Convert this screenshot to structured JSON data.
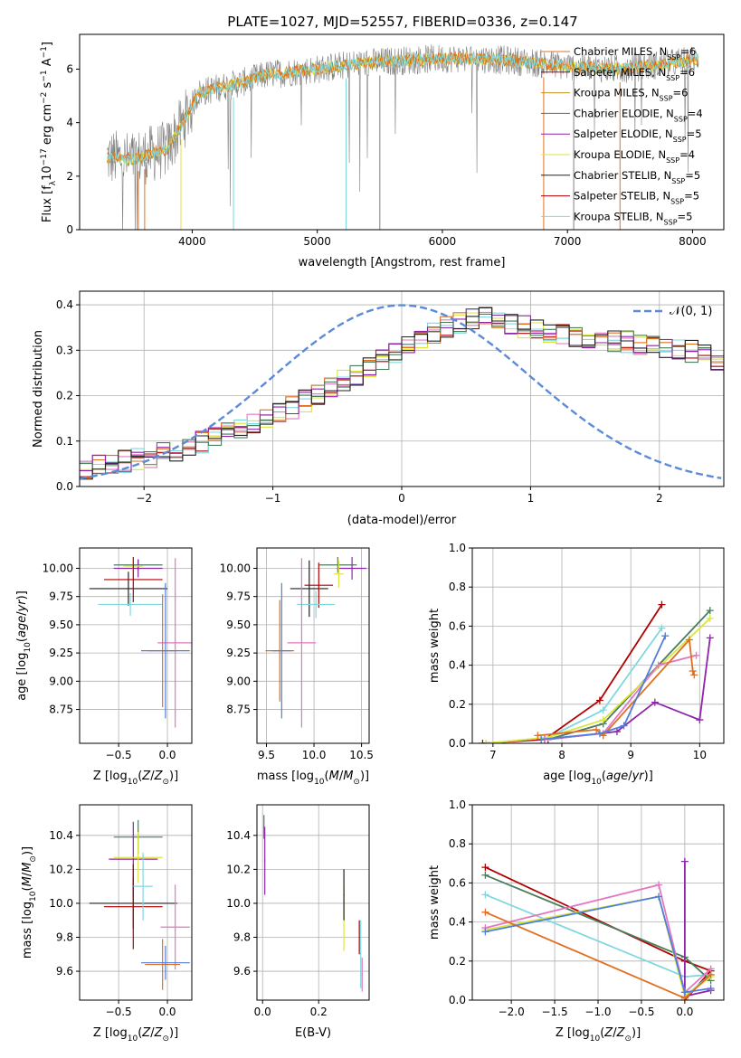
{
  "figure_title": "PLATE=1027, MJD=52557, FIBERID=0336, z=0.147",
  "model_colors": [
    "#4a7d5c",
    "#8e24aa",
    "#dbe53d",
    "#222222",
    "#b00000",
    "#7fd8e0",
    "#e377c2",
    "#e07020",
    "#4f7fdd"
  ],
  "chart_data": [
    {
      "id": "spectrum",
      "type": "line",
      "title": "PLATE=1027, MJD=52557, FIBERID=0336, z=0.147",
      "xlabel": "wavelength [Angstrom, rest frame]",
      "ylabel": "Flux [f_λ 10^−17 erg cm^−2 s^−1 A^−1]",
      "xlim": [
        3100,
        8250
      ],
      "ylim": [
        0,
        7.3
      ],
      "xticks": [
        4000,
        5000,
        6000,
        7000,
        8000
      ],
      "yticks": [
        0,
        2,
        4,
        6
      ],
      "grid": false,
      "legend_position": "top-right",
      "data_line_color": "#808080",
      "continuum_x": [
        3320,
        3500,
        3650,
        3800,
        3950,
        4050,
        4200,
        4400,
        4600,
        4800,
        5000,
        5300,
        5600,
        6000,
        6300,
        6600,
        7000,
        7400,
        7800,
        8050
      ],
      "continuum_y": [
        2.7,
        2.6,
        2.8,
        3.0,
        4.2,
        5.1,
        5.3,
        5.5,
        5.8,
        5.9,
        6.0,
        6.2,
        6.3,
        6.4,
        6.4,
        6.3,
        6.1,
        6.0,
        6.2,
        6.4
      ],
      "legend": [
        {
          "label": "Chabrier MILES, N",
          "sub": "SSP",
          "suffix": "=6"
        },
        {
          "label": "Salpeter MILES, N",
          "sub": "SSP",
          "suffix": "=6"
        },
        {
          "label": "Kroupa MILES, N",
          "sub": "SSP",
          "suffix": "=6"
        },
        {
          "label": "Chabrier ELODIE, N",
          "sub": "SSP",
          "suffix": "=4"
        },
        {
          "label": "Salpeter ELODIE, N",
          "sub": "SSP",
          "suffix": "=5"
        },
        {
          "label": "Kroupa ELODIE, N",
          "sub": "SSP",
          "suffix": "=4"
        },
        {
          "label": "Chabrier STELIB, N",
          "sub": "SSP",
          "suffix": "=5"
        },
        {
          "label": "Salpeter STELIB, N",
          "sub": "SSP",
          "suffix": "=5"
        },
        {
          "label": "Kroupa STELIB, N",
          "sub": "SSP",
          "suffix": "=5"
        }
      ],
      "legend_colors": [
        "#e07020",
        "#b00000",
        "#c89020",
        "#4a7d5c",
        "#8e24aa",
        "#dbe53d",
        "#222222",
        "#b00000",
        "#7fd8e0"
      ]
    },
    {
      "id": "residuals",
      "type": "histogram",
      "xlabel": "(data-model)/error",
      "ylabel": "Normed distribution",
      "xlim": [
        -2.5,
        2.5
      ],
      "ylim": [
        0,
        0.43
      ],
      "xticks": [
        -2,
        -1,
        0,
        1,
        2
      ],
      "yticks": [
        0.0,
        0.1,
        0.2,
        0.3,
        0.4
      ],
      "grid": true,
      "legend_position": "top-right",
      "legend_label": "𝒩(0, 1)",
      "gaussian_color": "#5b8bd8",
      "bin_edges_start": -2.5,
      "bin_width": 0.1,
      "base_histogram": [
        0.04,
        0.045,
        0.05,
        0.055,
        0.06,
        0.066,
        0.072,
        0.08,
        0.088,
        0.097,
        0.106,
        0.116,
        0.126,
        0.137,
        0.149,
        0.161,
        0.174,
        0.188,
        0.202,
        0.216,
        0.231,
        0.246,
        0.262,
        0.278,
        0.294,
        0.31,
        0.325,
        0.34,
        0.352,
        0.362,
        0.37,
        0.372,
        0.368,
        0.36,
        0.352,
        0.345,
        0.34,
        0.335,
        0.33,
        0.326,
        0.323,
        0.32,
        0.318,
        0.315,
        0.312,
        0.308,
        0.303,
        0.297,
        0.29,
        0.281,
        0.27,
        0.258,
        0.245,
        0.231,
        0.216,
        0.201,
        0.186,
        0.172,
        0.158,
        0.145,
        0.133,
        0.122,
        0.111,
        0.101,
        0.092,
        0.084,
        0.076,
        0.069,
        0.062,
        0.056,
        0.051,
        0.046,
        0.042,
        0.039,
        0.036
      ]
    },
    {
      "id": "age-vs-Z",
      "type": "errorbar",
      "xlabel": "Z [log10(Z/Z⊙)]",
      "ylabel": "age  [log10(age/yr)]",
      "xlim": [
        -0.9,
        0.25
      ],
      "ylim": [
        8.45,
        10.18
      ],
      "xticks": [
        -0.5,
        0.0
      ],
      "yticks": [
        8.75,
        9.0,
        9.25,
        9.5,
        9.75,
        10.0
      ],
      "grid": true,
      "points": [
        {
          "x": -0.3,
          "y": 10.03,
          "xerr": 0.25,
          "yerr": 0.05
        },
        {
          "x": -0.3,
          "y": 10.0,
          "xerr": 0.25,
          "yerr": 0.08
        },
        {
          "x": -0.35,
          "y": 10.02,
          "xerr": 0.1,
          "yerr": 0.06
        },
        {
          "x": -0.4,
          "y": 9.82,
          "xerr": 0.4,
          "yerr": 0.15
        },
        {
          "x": -0.35,
          "y": 9.9,
          "xerr": 0.3,
          "yerr": 0.2
        },
        {
          "x": -0.38,
          "y": 9.68,
          "xerr": 0.33,
          "yerr": 0.1
        },
        {
          "x": 0.08,
          "y": 9.34,
          "xerr": 0.18,
          "yerr": 0.75
        },
        {
          "x": -0.05,
          "y": 9.27,
          "xerr": 0.15,
          "yerr": 0.5
        },
        {
          "x": -0.02,
          "y": 9.27,
          "xerr": 0.25,
          "yerr": 0.6
        }
      ]
    },
    {
      "id": "age-vs-mass",
      "type": "errorbar",
      "xlabel": "mass [log10(M/M⊙)]",
      "ylabel": "",
      "xlim": [
        9.4,
        10.58
      ],
      "ylim": [
        8.45,
        10.18
      ],
      "xticks": [
        9.5,
        10.0,
        10.5
      ],
      "yticks": [
        8.75,
        9.0,
        9.25,
        9.5,
        9.75,
        10.0
      ],
      "grid": true,
      "points": [
        {
          "x": 10.25,
          "y": 10.03,
          "xerr": 0.2,
          "yerr": 0.07
        },
        {
          "x": 10.4,
          "y": 10.0,
          "xerr": 0.15,
          "yerr": 0.1
        },
        {
          "x": 10.26,
          "y": 9.95,
          "xerr": 0.05,
          "yerr": 0.12
        },
        {
          "x": 9.95,
          "y": 9.82,
          "xerr": 0.2,
          "yerr": 0.25
        },
        {
          "x": 10.05,
          "y": 9.85,
          "xerr": 0.15,
          "yerr": 0.2
        },
        {
          "x": 10.02,
          "y": 9.68,
          "xerr": 0.2,
          "yerr": 0.12
        },
        {
          "x": 9.87,
          "y": 9.34,
          "xerr": 0.15,
          "yerr": 0.75
        },
        {
          "x": 9.64,
          "y": 9.27,
          "xerr": 0.15,
          "yerr": 0.45
        },
        {
          "x": 9.66,
          "y": 9.27,
          "xerr": 0.1,
          "yerr": 0.6
        }
      ]
    },
    {
      "id": "mass-weight-vs-age",
      "type": "line",
      "xlabel": "age  [log10(age/yr)]",
      "ylabel": "mass weight",
      "xlim": [
        6.7,
        10.35
      ],
      "ylim": [
        0,
        1.0
      ],
      "xticks": [
        7,
        8,
        9,
        10
      ],
      "yticks": [
        0.0,
        0.2,
        0.4,
        0.6,
        0.8,
        1.0
      ],
      "grid": true,
      "series": [
        {
          "x": [
            6.85,
            7.75,
            8.55,
            9.45
          ],
          "y": [
            0.0,
            0.02,
            0.22,
            0.71
          ]
        },
        {
          "x": [
            6.9,
            7.8,
            8.6,
            9.45
          ],
          "y": [
            0.0,
            0.03,
            0.17,
            0.59
          ]
        },
        {
          "x": [
            7.8,
            8.6,
            10.15
          ],
          "y": [
            0.02,
            0.1,
            0.68
          ]
        },
        {
          "x": [
            7.8,
            8.8,
            9.35,
            10.0,
            10.15
          ],
          "y": [
            0.02,
            0.06,
            0.21,
            0.12,
            0.54
          ]
        },
        {
          "x": [
            6.9,
            7.8,
            8.6,
            10.15
          ],
          "y": [
            0.0,
            0.03,
            0.12,
            0.64
          ]
        },
        {
          "x": [
            7.75,
            8.6,
            9.4,
            9.95
          ],
          "y": [
            0.02,
            0.05,
            0.4,
            0.45
          ]
        },
        {
          "x": [
            7.65,
            8.5,
            8.6,
            9.85,
            9.9,
            9.92
          ],
          "y": [
            0.04,
            0.07,
            0.04,
            0.53,
            0.37,
            0.35
          ]
        },
        {
          "x": [
            7.7,
            8.55,
            8.9,
            9.5
          ],
          "y": [
            0.02,
            0.05,
            0.09,
            0.55
          ]
        }
      ]
    },
    {
      "id": "mass-vs-Z",
      "type": "errorbar",
      "xlabel": "Z [log10(Z/Z⊙)]",
      "ylabel": "mass [log10(M/M⊙)]",
      "xlim": [
        -0.9,
        0.25
      ],
      "ylim": [
        9.43,
        10.58
      ],
      "xticks": [
        -0.5,
        0.0
      ],
      "yticks": [
        9.6,
        9.8,
        10.0,
        10.2,
        10.4
      ],
      "grid": true,
      "points": [
        {
          "x": -0.3,
          "y": 10.39,
          "xerr": 0.25,
          "yerr": 0.1
        },
        {
          "x": -0.35,
          "y": 10.26,
          "xerr": 0.25,
          "yerr": 0.22
        },
        {
          "x": -0.3,
          "y": 10.27,
          "xerr": 0.25,
          "yerr": 0.15
        },
        {
          "x": -0.35,
          "y": 10.0,
          "xerr": 0.45,
          "yerr": 0.15
        },
        {
          "x": -0.35,
          "y": 9.98,
          "xerr": 0.3,
          "yerr": 0.25
        },
        {
          "x": -0.25,
          "y": 10.1,
          "xerr": 0.1,
          "yerr": 0.2
        },
        {
          "x": 0.08,
          "y": 9.86,
          "xerr": 0.15,
          "yerr": 0.25
        },
        {
          "x": -0.05,
          "y": 9.64,
          "xerr": 0.18,
          "yerr": 0.15
        },
        {
          "x": -0.02,
          "y": 9.65,
          "xerr": 0.25,
          "yerr": 0.1
        }
      ]
    },
    {
      "id": "mass-vs-EBV",
      "type": "errorbar",
      "xlabel": "E(B-V)",
      "ylabel": "",
      "xlim": [
        -0.02,
        0.38
      ],
      "ylim": [
        9.43,
        10.58
      ],
      "xticks": [
        0.0,
        0.2
      ],
      "yticks": [
        9.6,
        9.8,
        10.0,
        10.2,
        10.4
      ],
      "grid": true,
      "points": [
        {
          "x": 0.005,
          "y": 10.45,
          "xerr": 0.002,
          "yerr": 0.07
        },
        {
          "x": 0.008,
          "y": 10.25,
          "xerr": 0.002,
          "yerr": 0.2
        },
        {
          "x": 0.29,
          "y": 9.91,
          "xerr": 0.002,
          "yerr": 0.19
        },
        {
          "x": 0.29,
          "y": 10.05,
          "xerr": 0.002,
          "yerr": 0.15
        },
        {
          "x": 0.345,
          "y": 9.8,
          "xerr": 0.002,
          "yerr": 0.1
        },
        {
          "x": 0.35,
          "y": 9.7,
          "xerr": 0.002,
          "yerr": 0.2
        },
        {
          "x": 0.355,
          "y": 9.58,
          "xerr": 0.002,
          "yerr": 0.1
        }
      ]
    },
    {
      "id": "mass-weight-vs-Z",
      "type": "line",
      "xlabel": "Z [log10(Z/Z⊙)]",
      "ylabel": "mass weight",
      "xlim": [
        -2.45,
        0.45
      ],
      "ylim": [
        0,
        1.0
      ],
      "xticks": [
        -2.0,
        -1.5,
        -1.0,
        -0.5,
        0.0
      ],
      "yticks": [
        0.0,
        0.2,
        0.4,
        0.6,
        0.8,
        1.0
      ],
      "grid": true,
      "series": [
        {
          "x": [
            -2.3,
            0.0,
            0.3,
            0.0
          ],
          "y": [
            0.68,
            0.2,
            0.15,
            0.0
          ]
        },
        {
          "x": [
            -2.3,
            0.0,
            0.3,
            0.0
          ],
          "y": [
            0.54,
            0.12,
            0.13,
            0.02
          ]
        },
        {
          "x": [
            -2.3,
            0.0,
            0.3
          ],
          "y": [
            0.64,
            0.22,
            0.1
          ]
        },
        {
          "x": [
            0.0,
            0.0,
            0.3
          ],
          "y": [
            0.71,
            0.02,
            0.05
          ]
        },
        {
          "x": [
            -2.3,
            -0.3,
            0.0,
            0.3
          ],
          "y": [
            0.36,
            0.53,
            0.02,
            0.12
          ]
        },
        {
          "x": [
            -2.3,
            -0.3,
            0.0,
            0.3
          ],
          "y": [
            0.37,
            0.59,
            0.04,
            0.16
          ]
        },
        {
          "x": [
            -2.3,
            0.0,
            0.3
          ],
          "y": [
            0.45,
            0.01,
            0.13
          ]
        },
        {
          "x": [
            -2.3,
            -0.3,
            0.0,
            0.3
          ],
          "y": [
            0.35,
            0.53,
            0.04,
            0.06
          ]
        }
      ]
    }
  ]
}
